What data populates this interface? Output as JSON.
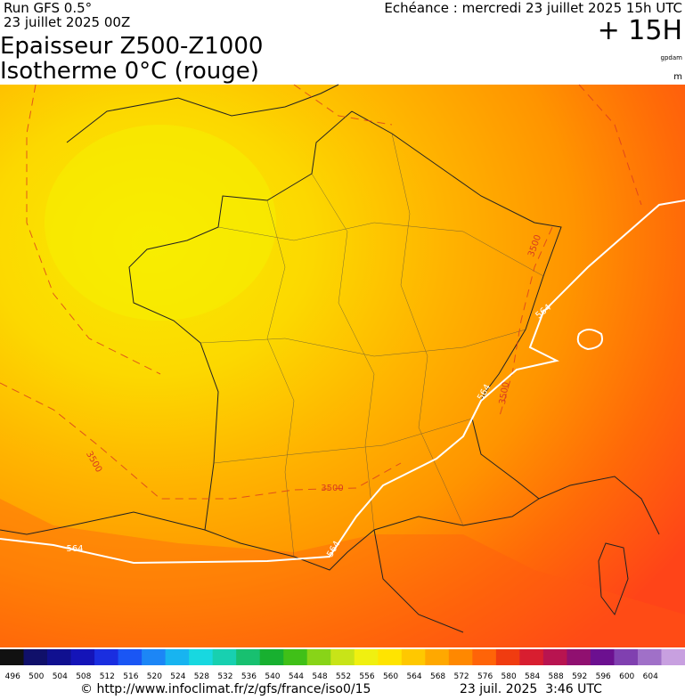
{
  "header": {
    "run": "Run GFS 0.5°",
    "run_date": "23 juillet 2025 00Z",
    "title_line1": "Epaisseur Z500-Z1000",
    "title_line2": "Isotherme 0°C (rouge)",
    "valid": "Echéance : mercredi 23 juillet 2025 15h UTC",
    "lead": "+ 15H",
    "unit1": "gpdam",
    "unit2": "m"
  },
  "map": {
    "contour_labels": [
      "3500",
      "564",
      "564",
      "3500",
      "3500",
      "3500",
      "564",
      "564"
    ]
  },
  "colorbar": {
    "labels": [
      496,
      500,
      504,
      508,
      512,
      516,
      520,
      524,
      528,
      532,
      536,
      540,
      544,
      548,
      552,
      556,
      560,
      564,
      568,
      572,
      576,
      580,
      584,
      588,
      592,
      596,
      600,
      604
    ]
  },
  "footer": {
    "url": "© http://www.infoclimat.fr/z/gfs/france/iso0/15",
    "time": "23 juil. 2025  3:46 UTC"
  }
}
